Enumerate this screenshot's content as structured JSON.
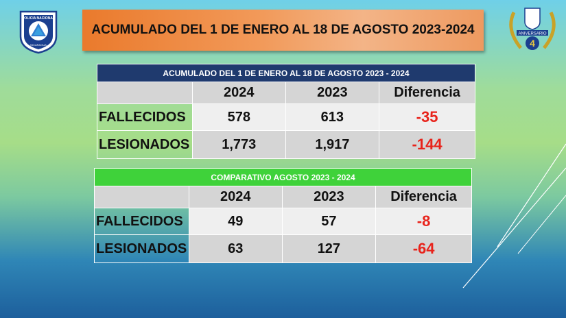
{
  "logos": {
    "left_badge_text": "POLICIA NACIONAL",
    "left_badge_bottom": "NICARAGUA",
    "right_badge_text": "ANIVERSARIO",
    "right_badge_number": "4"
  },
  "title": "ACUMULADO DEL 1 DE ENERO AL 18 DE AGOSTO 2023-2024",
  "table_accumulated": {
    "caption": "ACUMULADO DEL 1 DE ENERO AL 18 DE AGOSTO  2023 - 2024",
    "headers": [
      "",
      "2024",
      "2023",
      "Diferencia"
    ],
    "rows": [
      {
        "label": "FALLECIDOS",
        "y2024": "578",
        "y2023": "613",
        "diff": "-35"
      },
      {
        "label": "LESIONADOS",
        "y2024": "1,773",
        "y2023": "1,917",
        "diff": "-144"
      }
    ]
  },
  "table_august": {
    "caption": "COMPARATIVO AGOSTO 2023 - 2024",
    "headers": [
      "",
      "2024",
      "2023",
      "Diferencia"
    ],
    "rows": [
      {
        "label": "FALLECIDOS",
        "y2024": "49",
        "y2023": "57",
        "diff": "-8"
      },
      {
        "label": "LESIONADOS",
        "y2024": "63",
        "y2023": "127",
        "diff": "-64"
      }
    ]
  },
  "colors": {
    "title_bg": "#ea7a2c",
    "table1_band": "#1f3a6e",
    "table2_band": "#3fd23a",
    "negative": "#e8231b"
  }
}
